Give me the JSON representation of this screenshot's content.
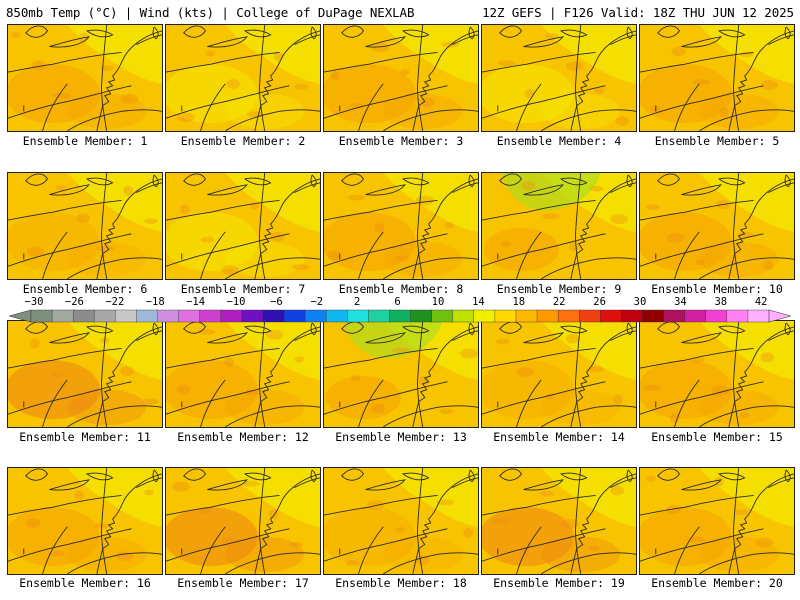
{
  "header": {
    "left": "850mb Temp (°C) | Wind (kts) | College of DuPage NEXLAB",
    "right": "12Z GEFS | F126 Valid: 18Z THU JUN 12 2025"
  },
  "members": [
    {
      "label": "Ensemble Member: 1",
      "tint": "warm"
    },
    {
      "label": "Ensemble Member: 2",
      "tint": "cool"
    },
    {
      "label": "Ensemble Member: 3",
      "tint": "warm"
    },
    {
      "label": "Ensemble Member: 4",
      "tint": "cool"
    },
    {
      "label": "Ensemble Member: 5",
      "tint": "warm"
    },
    {
      "label": "Ensemble Member: 6",
      "tint": "mid"
    },
    {
      "label": "Ensemble Member: 7",
      "tint": "cool"
    },
    {
      "label": "Ensemble Member: 8",
      "tint": "warm"
    },
    {
      "label": "Ensemble Member: 9",
      "tint": "green"
    },
    {
      "label": "Ensemble Member: 10",
      "tint": "warm"
    },
    {
      "label": "Ensemble Member: 11",
      "tint": "hot"
    },
    {
      "label": "Ensemble Member: 12",
      "tint": "warm"
    },
    {
      "label": "Ensemble Member: 13",
      "tint": "green"
    },
    {
      "label": "Ensemble Member: 14",
      "tint": "mid"
    },
    {
      "label": "Ensemble Member: 15",
      "tint": "warm"
    },
    {
      "label": "Ensemble Member: 16",
      "tint": "warm"
    },
    {
      "label": "Ensemble Member: 17",
      "tint": "hot"
    },
    {
      "label": "Ensemble Member: 18",
      "tint": "mid"
    },
    {
      "label": "Ensemble Member: 19",
      "tint": "hot"
    },
    {
      "label": "Ensemble Member: 20",
      "tint": "warm"
    }
  ],
  "colorbar": {
    "ticks": [
      "−30",
      "−26",
      "−22",
      "−18",
      "−14",
      "−10",
      "−6",
      "−2",
      "2",
      "6",
      "10",
      "14",
      "18",
      "22",
      "26",
      "30",
      "34",
      "38",
      "42"
    ],
    "colors": [
      "#7f8f7f",
      "#a0a8a0",
      "#8c8c8c",
      "#a8a8a8",
      "#c8c8c8",
      "#9fb8d8",
      "#d090e0",
      "#e070e0",
      "#d040d0",
      "#b020c0",
      "#7010c0",
      "#3010b0",
      "#1040e0",
      "#1080f0",
      "#10b8f0",
      "#20e0e0",
      "#20d0a0",
      "#10b060",
      "#209020",
      "#70c010",
      "#c0e000",
      "#f0f000",
      "#ffd800",
      "#ffb800",
      "#ff9800",
      "#ff7010",
      "#f04010",
      "#e01010",
      "#c00010",
      "#900000",
      "#b01060",
      "#d020a0",
      "#f040d0",
      "#ff80f0",
      "#ffb0ff"
    ]
  },
  "palette": {
    "base": "#f8c400",
    "cool_yellow": "#f5e400",
    "orange": "#f5a200",
    "deep_orange": "#ee8a10",
    "green": "#b0dc1c",
    "outline": "#2a2a2a"
  }
}
